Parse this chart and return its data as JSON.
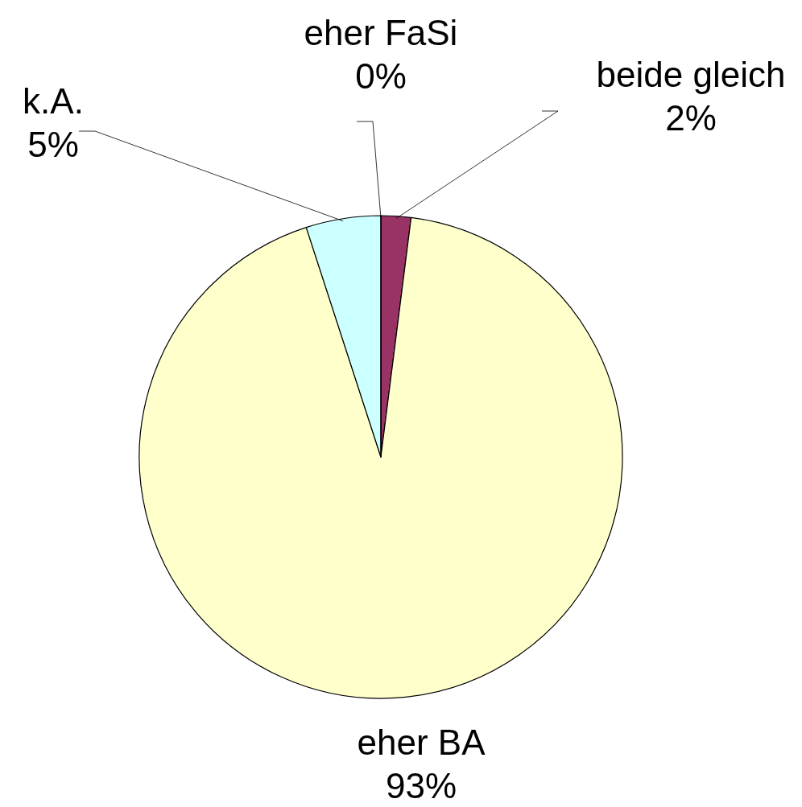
{
  "chart_data": {
    "type": "pie",
    "categories": [
      "beide gleich",
      "eher BA",
      "k.A.",
      "eher FaSi"
    ],
    "values": [
      2,
      93,
      5,
      0
    ],
    "colors": [
      "#993366",
      "#ffffcc",
      "#ccffff",
      "#ffffff"
    ],
    "value_labels": [
      "2%",
      "93%",
      "5%",
      "0%"
    ]
  }
}
